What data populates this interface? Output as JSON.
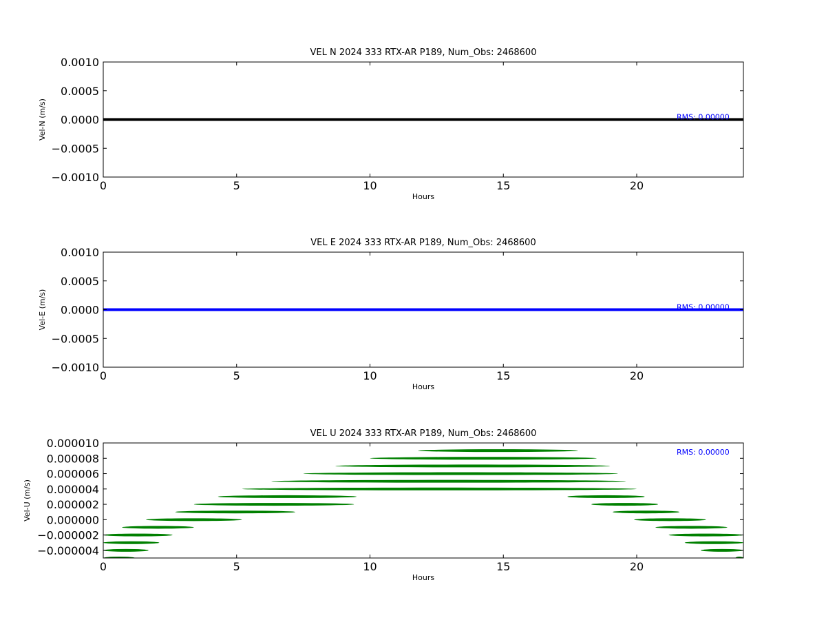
{
  "chart_data": [
    {
      "type": "line",
      "title": "VEL N 2024 333 RTX-AR  P189, Num_Obs: 2468600",
      "xlabel": "Hours",
      "ylabel": "Vel-N (m/s)",
      "xlim": [
        0,
        24
      ],
      "ylim": [
        -0.001,
        0.001
      ],
      "xticks": [
        "0",
        "5",
        "10",
        "15",
        "20"
      ],
      "yticks": [
        "0.0010",
        "0.0005",
        "0.0000",
        "−0.0005",
        "−0.0010"
      ],
      "color": "#000000",
      "annotation": "RMS:  0.00000",
      "annotation_color": "#0000ff",
      "series": [
        {
          "x": [
            0,
            24
          ],
          "y": [
            0,
            0
          ]
        }
      ]
    },
    {
      "type": "line",
      "title": "VEL E 2024 333 RTX-AR  P189, Num_Obs: 2468600",
      "xlabel": "Hours",
      "ylabel": "Vel-E (m/s)",
      "xlim": [
        0,
        24
      ],
      "ylim": [
        -0.001,
        0.001
      ],
      "xticks": [
        "0",
        "5",
        "10",
        "15",
        "20"
      ],
      "yticks": [
        "0.0010",
        "0.0005",
        "0.0000",
        "−0.0005",
        "−0.0010"
      ],
      "color": "#0000ff",
      "annotation": "RMS:  0.00000",
      "annotation_color": "#0000ff",
      "series": [
        {
          "x": [
            0,
            24
          ],
          "y": [
            0,
            0
          ]
        }
      ]
    },
    {
      "type": "scatter",
      "title": "VEL U 2024 333 RTX-AR  P189, Num_Obs: 2468600",
      "xlabel": "Hours",
      "ylabel": "Vel-U (m/s)",
      "xlim": [
        0,
        24
      ],
      "ylim": [
        -5e-06,
        1e-05
      ],
      "xticks": [
        "0",
        "5",
        "10",
        "15",
        "20"
      ],
      "yticks": [
        "0.000010",
        "0.000008",
        "0.000006",
        "0.000004",
        "0.000002",
        "0.000000",
        "−0.000002",
        "−0.000004"
      ],
      "color": "#008000",
      "annotation": "RMS:  0.00000",
      "annotation_color": "#0000ff",
      "bands": [
        {
          "y": 9e-06,
          "x0": 11.8,
          "x1": 17.8
        },
        {
          "y": 8e-06,
          "x0": 10.0,
          "x1": 18.5
        },
        {
          "y": 7e-06,
          "x0": 8.7,
          "x1": 19.0
        },
        {
          "y": 6e-06,
          "x0": 7.5,
          "x1": 19.3
        },
        {
          "y": 5e-06,
          "x0": 6.3,
          "x1": 19.6
        },
        {
          "y": 4e-06,
          "x0": 5.2,
          "x1": 20.0
        },
        {
          "y": 3e-06,
          "x0": 4.3,
          "x1": 9.5
        },
        {
          "y": 3e-06,
          "x0": 17.4,
          "x1": 20.3
        },
        {
          "y": 2e-06,
          "x0": 3.4,
          "x1": 9.4
        },
        {
          "y": 2e-06,
          "x0": 18.3,
          "x1": 20.8
        },
        {
          "y": 1e-06,
          "x0": 2.7,
          "x1": 7.2
        },
        {
          "y": 1e-06,
          "x0": 19.1,
          "x1": 21.6
        },
        {
          "y": 0.0,
          "x0": 1.6,
          "x1": 5.2
        },
        {
          "y": 0.0,
          "x0": 19.9,
          "x1": 22.6
        },
        {
          "y": -1e-06,
          "x0": 0.7,
          "x1": 3.4
        },
        {
          "y": -1e-06,
          "x0": 20.7,
          "x1": 23.4
        },
        {
          "y": -2e-06,
          "x0": 0.0,
          "x1": 2.6
        },
        {
          "y": -2e-06,
          "x0": 21.2,
          "x1": 24.0
        },
        {
          "y": -3e-06,
          "x0": 0.0,
          "x1": 2.1
        },
        {
          "y": -3e-06,
          "x0": 21.8,
          "x1": 24.0
        },
        {
          "y": -4e-06,
          "x0": 0.0,
          "x1": 1.7
        },
        {
          "y": -4e-06,
          "x0": 22.4,
          "x1": 24.0
        },
        {
          "y": -5e-06,
          "x0": 0.0,
          "x1": 1.2
        },
        {
          "y": -5e-06,
          "x0": 23.7,
          "x1": 24.0
        }
      ]
    }
  ]
}
